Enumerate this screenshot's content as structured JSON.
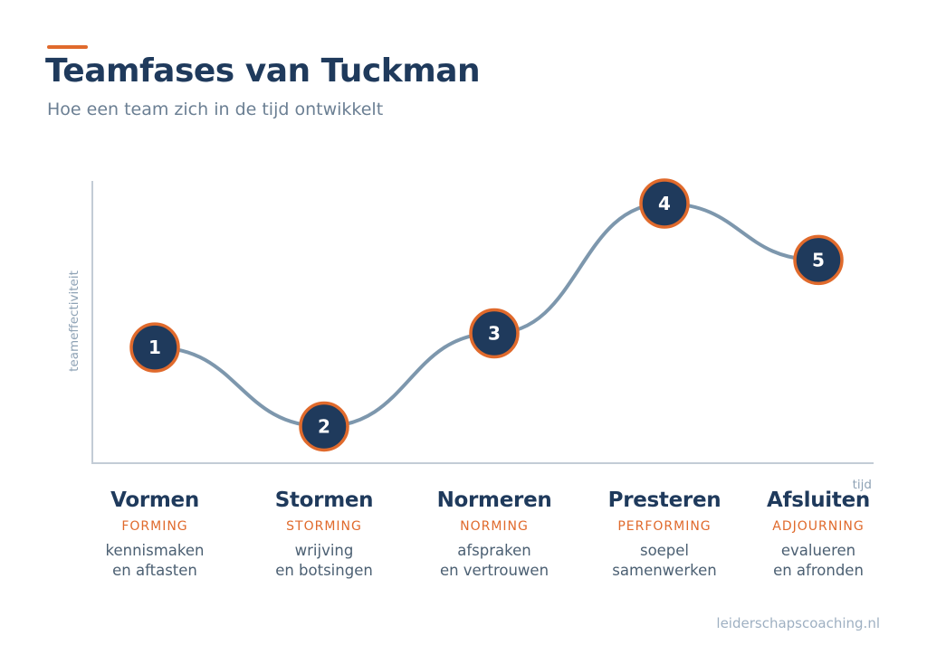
{
  "header": {
    "title": "Teamfases van Tuckman",
    "subtitle": "Hoe een team zich in de tijd ontwikkelt"
  },
  "colors": {
    "navy": "#1f3a5c",
    "orange": "#e06a2c",
    "curve": "#7d97ad",
    "axis": "#c3ccd6"
  },
  "chart_data": {
    "type": "line",
    "ylabel": "teameffectiviteit",
    "xlabel": "tijd",
    "y_scale": "relative effectiveness (unlabeled)",
    "ylim": [
      0,
      100
    ],
    "points": [
      {
        "label": "1",
        "y": 41
      },
      {
        "label": "2",
        "y": 13
      },
      {
        "label": "3",
        "y": 46
      },
      {
        "label": "4",
        "y": 92
      },
      {
        "label": "5",
        "y": 72
      }
    ]
  },
  "phases": [
    {
      "name": "Vormen",
      "english": "FORMING",
      "desc1": "kennismaken",
      "desc2": "en aftasten"
    },
    {
      "name": "Stormen",
      "english": "STORMING",
      "desc1": "wrijving",
      "desc2": "en botsingen"
    },
    {
      "name": "Normeren",
      "english": "NORMING",
      "desc1": "afspraken",
      "desc2": "en vertrouwen"
    },
    {
      "name": "Presteren",
      "english": "PERFORMING",
      "desc1": "soepel",
      "desc2": "samenwerken"
    },
    {
      "name": "Afsluiten",
      "english": "ADJOURNING",
      "desc1": "evalueren",
      "desc2": "en afronden"
    }
  ],
  "footer": {
    "source": "leiderschapscoaching.nl"
  }
}
